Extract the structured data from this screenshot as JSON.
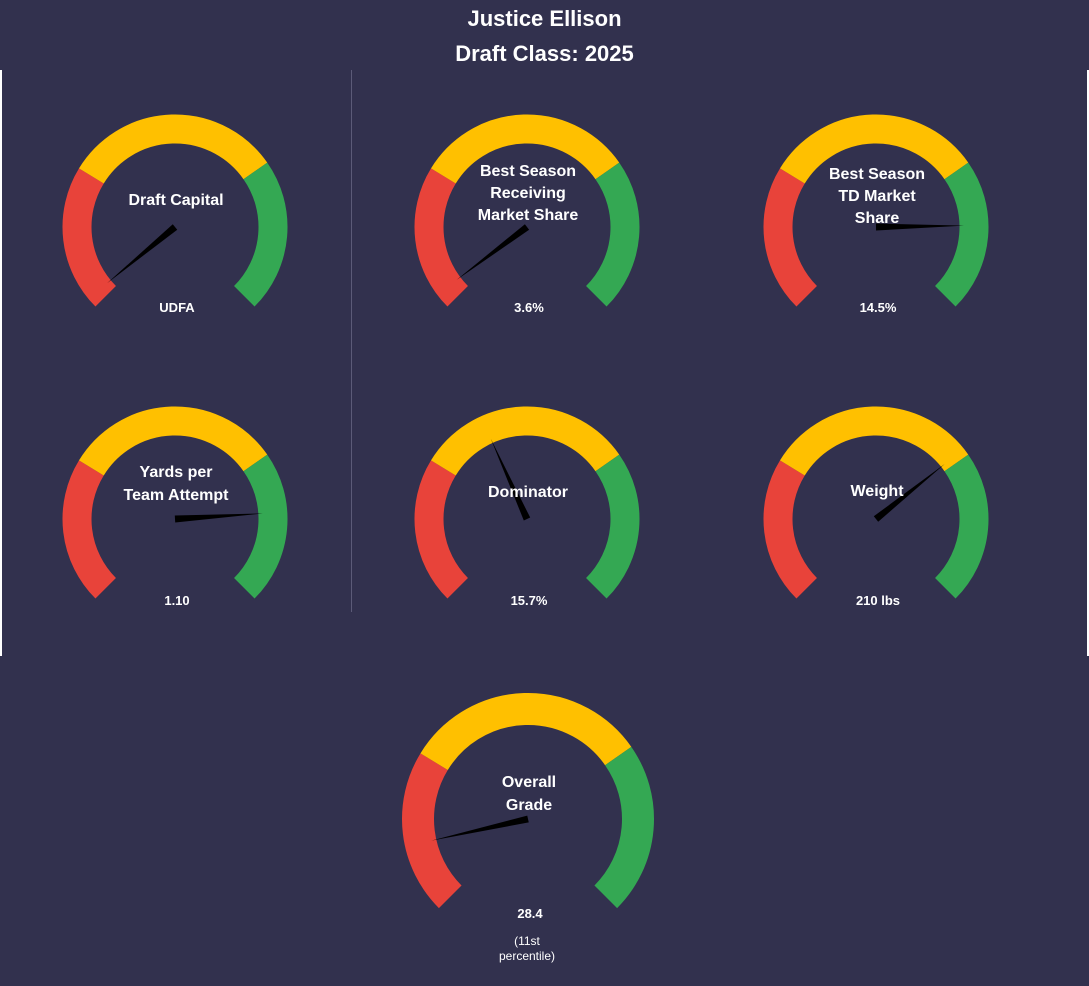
{
  "page": {
    "title_line1": "Justice Ellison",
    "title_line2": "Draft Class: 2025",
    "background_color": "#32314e"
  },
  "colors": {
    "low": "#e8433a",
    "mid": "#ffc000",
    "high": "#34a853",
    "needle": "#000000"
  },
  "chart_data": [
    {
      "type": "gauge",
      "title": [
        "Draft Capital"
      ],
      "value_label": "UDFA",
      "fraction": 0.02
    },
    {
      "type": "gauge",
      "title": [
        "Best Season",
        "Receiving",
        "Market Share"
      ],
      "value_label": "3.6%",
      "fraction": 0.03
    },
    {
      "type": "gauge",
      "title": [
        "Best Season",
        "TD Market",
        "Share"
      ],
      "value_label": "14.5%",
      "fraction": 0.83
    },
    {
      "type": "gauge",
      "title": [
        "Yards per",
        "Team Attempt"
      ],
      "value_label": "1.10",
      "fraction": 0.82
    },
    {
      "type": "gauge",
      "title": [
        "Dominator"
      ],
      "value_label": "15.7%",
      "fraction": 0.41
    },
    {
      "type": "gauge",
      "title": [
        "Weight"
      ],
      "value_label": "210 lbs",
      "fraction": 0.69
    },
    {
      "type": "gauge",
      "title": [
        "Overall",
        "Grade"
      ],
      "value_label": "28.4",
      "sub_label": [
        "(11st",
        "percentile)"
      ],
      "fraction": 0.12
    }
  ]
}
